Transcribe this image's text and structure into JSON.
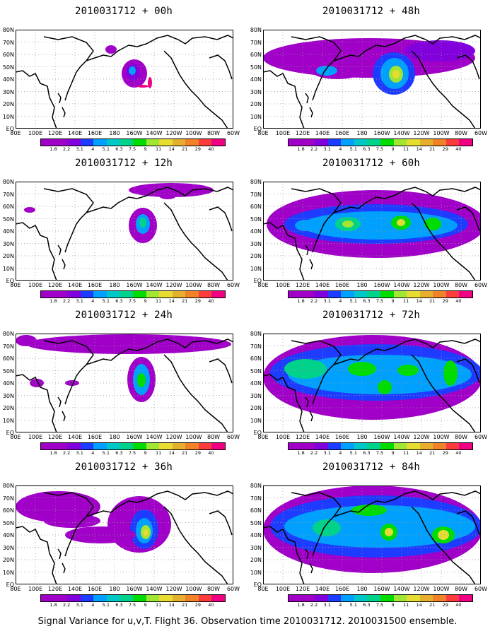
{
  "caption": "Signal Variance for u,v,T. Flight 36. Observation time 2010031712. 2010031500 ensemble.",
  "y_labels": [
    "80N",
    "70N",
    "60N",
    "50N",
    "40N",
    "30N",
    "20N",
    "10N",
    "EQ"
  ],
  "x_labels": [
    "80E",
    "100E",
    "120E",
    "140E",
    "160E",
    "180",
    "160W",
    "140W",
    "120W",
    "100W",
    "80W",
    "60W"
  ],
  "colorbar": {
    "labels": [
      "1.8",
      "2.2",
      "3.1",
      "4",
      "5.1",
      "6.3",
      "7.5",
      "9",
      "11",
      "14",
      "21",
      "29",
      "40"
    ],
    "colors": [
      "#a000c8",
      "#8200dc",
      "#1e3cff",
      "#00a0ff",
      "#00c8c8",
      "#00d28c",
      "#00dc00",
      "#a0e632",
      "#e6dc32",
      "#e6af2d",
      "#f08228",
      "#fa3c3c",
      "#f00082"
    ]
  },
  "panels": [
    {
      "title": "2010031712 + 00h"
    },
    {
      "title": "2010031712 + 48h"
    },
    {
      "title": "2010031712 + 12h"
    },
    {
      "title": "2010031712 + 60h"
    },
    {
      "title": "2010031712 + 24h"
    },
    {
      "title": "2010031712 + 72h"
    },
    {
      "title": "2010031712 + 36h"
    },
    {
      "title": "2010031712 + 84h"
    }
  ]
}
